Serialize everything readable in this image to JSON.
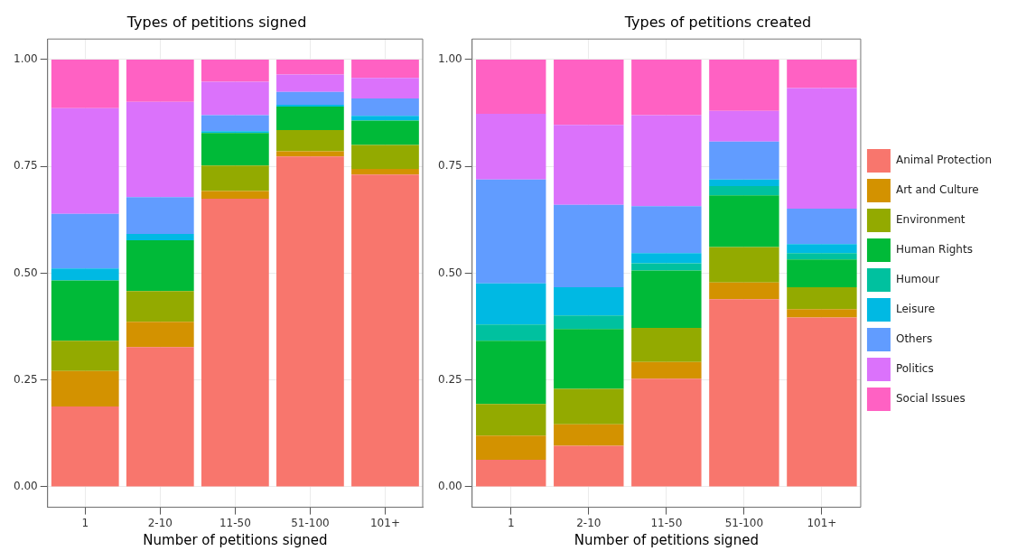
{
  "chart_data": [
    {
      "type": "bar",
      "stacked": true,
      "title": "Types of petitions signed",
      "xlabel": "Number of petitions signed",
      "categories": [
        "1",
        "2-10",
        "11-50",
        "51-100",
        "101+"
      ],
      "ylim": [
        -0.048,
        1.048
      ],
      "yticks": [
        {
          "value": 0,
          "label": "0.00"
        },
        {
          "value": 0.25,
          "label": "0.25"
        },
        {
          "value": 0.5,
          "label": "0.50"
        },
        {
          "value": 0.75,
          "label": "0.75"
        },
        {
          "value": 1,
          "label": "1.00"
        }
      ],
      "grid": true,
      "legend": false,
      "series": [
        {
          "color": "#f8766d",
          "values": [
            0.188,
            0.327,
            0.674,
            0.773,
            0.731
          ]
        },
        {
          "color": "#d39200",
          "values": [
            0.083,
            0.059,
            0.018,
            0.012,
            0.013
          ]
        },
        {
          "color": "#93aa00",
          "values": [
            0.071,
            0.072,
            0.06,
            0.05,
            0.056
          ]
        },
        {
          "color": "#00ba38",
          "values": [
            0.141,
            0.119,
            0.076,
            0.055,
            0.057
          ]
        },
        {
          "color": "#00c19f",
          "values": [
            0,
            0,
            0,
            0,
            0
          ]
        },
        {
          "color": "#00b9e3",
          "values": [
            0.028,
            0.015,
            0.004,
            0.004,
            0.011
          ]
        },
        {
          "color": "#619cff",
          "values": [
            0.128,
            0.086,
            0.038,
            0.03,
            0.041
          ]
        },
        {
          "color": "#db72fb",
          "values": [
            0.247,
            0.223,
            0.078,
            0.041,
            0.048
          ]
        },
        {
          "color": "#ff61c3",
          "values": [
            0.114,
            0.099,
            0.052,
            0.035,
            0.043
          ]
        }
      ]
    },
    {
      "type": "bar",
      "stacked": true,
      "title": "Types of petitions created",
      "xlabel": "Number of petitions signed",
      "categories": [
        "1",
        "2-10",
        "11-50",
        "51-100",
        "101+"
      ],
      "ylim": [
        -0.048,
        1.048
      ],
      "yticks": [
        {
          "value": 0,
          "label": "0.00"
        },
        {
          "value": 0.25,
          "label": "0.25"
        },
        {
          "value": 0.5,
          "label": "0.50"
        },
        {
          "value": 0.75,
          "label": "0.75"
        },
        {
          "value": 1,
          "label": "1.00"
        }
      ],
      "grid": true,
      "legend": "right",
      "series": [
        {
          "name": "Animal Protection",
          "color": "#f8766d",
          "values": [
            0.063,
            0.096,
            0.253,
            0.439,
            0.396
          ]
        },
        {
          "name": "Art and Culture",
          "color": "#d39200",
          "values": [
            0.057,
            0.05,
            0.039,
            0.039,
            0.02
          ]
        },
        {
          "name": "Environment",
          "color": "#93aa00",
          "values": [
            0.074,
            0.083,
            0.08,
            0.083,
            0.051
          ]
        },
        {
          "name": "Human Rights",
          "color": "#00ba38",
          "values": [
            0.148,
            0.14,
            0.134,
            0.121,
            0.065
          ]
        },
        {
          "name": "Humour",
          "color": "#00c19f",
          "values": [
            0.038,
            0.032,
            0.017,
            0.022,
            0.015
          ]
        },
        {
          "name": "Leisure",
          "color": "#00b9e3",
          "values": [
            0.096,
            0.066,
            0.024,
            0.015,
            0.021
          ]
        },
        {
          "name": "Others",
          "color": "#619cff",
          "values": [
            0.243,
            0.193,
            0.11,
            0.089,
            0.083
          ]
        },
        {
          "name": "Politics",
          "color": "#db72fb",
          "values": [
            0.154,
            0.187,
            0.213,
            0.072,
            0.282
          ]
        },
        {
          "name": "Social Issues",
          "color": "#ff61c3",
          "values": [
            0.127,
            0.153,
            0.13,
            0.12,
            0.067
          ]
        }
      ]
    }
  ]
}
